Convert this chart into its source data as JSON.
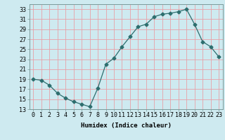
{
  "x": [
    0,
    1,
    2,
    3,
    4,
    5,
    6,
    7,
    8,
    9,
    10,
    11,
    12,
    13,
    14,
    15,
    16,
    17,
    18,
    19,
    20,
    21,
    22,
    23
  ],
  "y": [
    19.0,
    18.8,
    17.8,
    16.2,
    15.2,
    14.5,
    14.0,
    13.5,
    17.2,
    22.0,
    23.2,
    25.5,
    27.5,
    29.5,
    30.0,
    31.5,
    32.0,
    32.2,
    32.5,
    33.0,
    30.0,
    26.5,
    25.5,
    23.5
  ],
  "xlabel": "Humidex (Indice chaleur)",
  "ylim": [
    13,
    34
  ],
  "xlim": [
    -0.5,
    23.5
  ],
  "yticks": [
    13,
    15,
    17,
    19,
    21,
    23,
    25,
    27,
    29,
    31,
    33
  ],
  "xticks": [
    0,
    1,
    2,
    3,
    4,
    5,
    6,
    7,
    8,
    9,
    10,
    11,
    12,
    13,
    14,
    15,
    16,
    17,
    18,
    19,
    20,
    21,
    22,
    23
  ],
  "line_color": "#2d6e6e",
  "marker": "D",
  "marker_size": 2.5,
  "bg_color": "#ceeaf0",
  "grid_color": "#e8a0a8",
  "label_fontsize": 6.5,
  "tick_fontsize": 6.0
}
